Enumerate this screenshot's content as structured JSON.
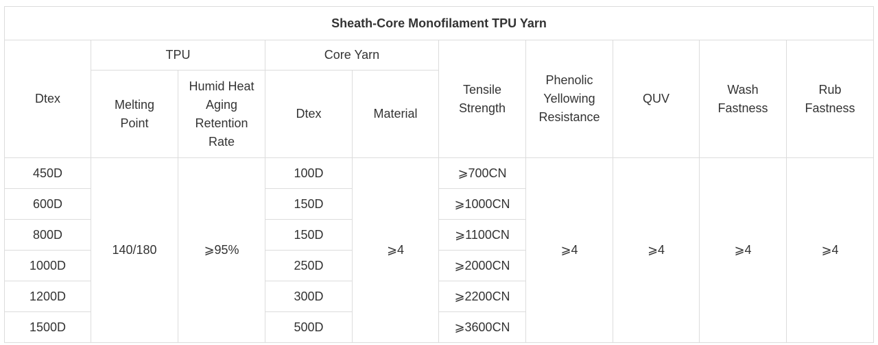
{
  "table": {
    "title": "Sheath-Core Monofilament TPU Yarn",
    "headers": {
      "dtex": "Dtex",
      "tpu_group": "TPU",
      "core_group": "Core Yarn",
      "melting_point": "Melting\nPoint",
      "humid_heat": "Humid Heat\nAging\nRetention\nRate",
      "core_dtex": "Dtex",
      "material": "Material",
      "tensile": "Tensile\nStrength",
      "phenolic": "Phenolic\nYellowing\nResistance",
      "quv": "QUV",
      "wash": "Wash\nFastness",
      "rub": "Rub\nFastness"
    },
    "rows": [
      {
        "dtex": "450D",
        "core_dtex": "100D",
        "tensile": "⩾700CN"
      },
      {
        "dtex": "600D",
        "core_dtex": "150D",
        "tensile": "⩾1000CN"
      },
      {
        "dtex": "800D",
        "core_dtex": "150D",
        "tensile": "⩾1100CN"
      },
      {
        "dtex": "1000D",
        "core_dtex": "250D",
        "tensile": "⩾2000CN"
      },
      {
        "dtex": "1200D",
        "core_dtex": "300D",
        "tensile": "⩾2200CN"
      },
      {
        "dtex": "1500D",
        "core_dtex": "500D",
        "tensile": "⩾3600CN"
      }
    ],
    "shared": {
      "melting_point": "140/180",
      "humid_heat": "⩾95%",
      "material": "⩾4",
      "phenolic": "⩾4",
      "quv": "⩾4",
      "wash": "⩾4",
      "rub": "⩾4"
    }
  }
}
